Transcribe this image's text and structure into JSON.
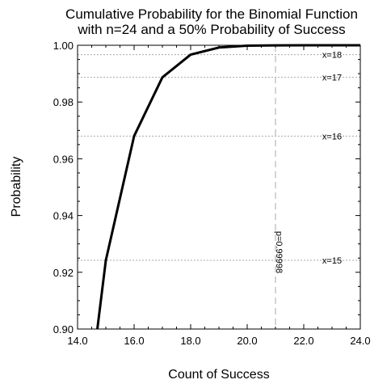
{
  "chart_data": {
    "type": "line",
    "title": [
      "Cumulative Probability for the Binomial Function",
      "with n=24 and a 50% Probability of Success"
    ],
    "xlabel": "Count of Success",
    "ylabel": "Probability",
    "xlim": [
      14.0,
      24.0
    ],
    "ylim": [
      0.9,
      1.0
    ],
    "x_ticks": [
      "14.0",
      "16.0",
      "18.0",
      "20.0",
      "22.0",
      "24.0"
    ],
    "y_ticks": [
      "0.90",
      "0.92",
      "0.94",
      "0.96",
      "0.98",
      "1.00"
    ],
    "series": [
      {
        "x": [
          14.7,
          15,
          16,
          17,
          18,
          19,
          20,
          21,
          22,
          23,
          24
        ],
        "values": [
          0.9,
          0.9242,
          0.968,
          0.9887,
          0.9967,
          0.9992,
          0.99985,
          0.99998,
          1.0,
          1.0,
          1.0
        ]
      }
    ],
    "reference_lines": [
      {
        "label": "x=18",
        "y": 0.9967
      },
      {
        "label": "x=17",
        "y": 0.9887
      },
      {
        "label": "x=16",
        "y": 0.968
      },
      {
        "label": "x=15",
        "y": 0.9242
      }
    ],
    "vertical_marker": {
      "x": 21,
      "label": "p=0.99998"
    },
    "colors": {
      "line": "#000000",
      "reference": "#aaaaaa"
    }
  }
}
